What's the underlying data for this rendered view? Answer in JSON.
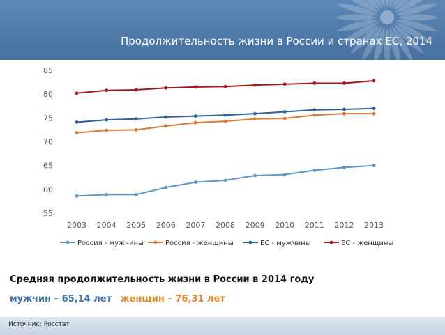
{
  "title": "Продолжительность жизни в России и странах ЕС, 2014",
  "summary": {
    "heading": "Средняя продолжительность жизни в России в 2014 году",
    "men": "мужчин – 65,14 лет",
    "women": "женщин – 76,31 лет"
  },
  "source": "Источник: Росстат",
  "colors": {
    "header": "#4f7aab",
    "russia_men": "#5f95c6",
    "russia_women": "#d9793a",
    "eu_men": "#2e5f96",
    "eu_women": "#a01919"
  },
  "chart_data": {
    "type": "line",
    "title": "",
    "xlabel": "",
    "ylabel": "",
    "categories": [
      "2003",
      "2004",
      "2005",
      "2006",
      "2007",
      "2008",
      "2009",
      "2010",
      "2011",
      "2012",
      "2013"
    ],
    "ylim": [
      55,
      85
    ],
    "yticks": [
      55,
      60,
      65,
      70,
      75,
      80,
      85
    ],
    "grid": false,
    "legend": "bottom",
    "series": [
      {
        "name": "Россия - мужчины",
        "color": "#5f95c6",
        "values": [
          58.6,
          58.9,
          58.9,
          60.4,
          61.5,
          61.9,
          62.9,
          63.1,
          64.0,
          64.6,
          65.0
        ]
      },
      {
        "name": "Россия - женщины",
        "color": "#d9793a",
        "values": [
          71.9,
          72.4,
          72.5,
          73.3,
          74.0,
          74.3,
          74.8,
          74.9,
          75.6,
          75.9,
          75.9
        ]
      },
      {
        "name": "ЕС - мужчины",
        "color": "#2e5f96",
        "values": [
          74.1,
          74.6,
          74.8,
          75.2,
          75.4,
          75.6,
          75.9,
          76.3,
          76.7,
          76.8,
          77.0
        ]
      },
      {
        "name": "ЕС - женщины",
        "color": "#a01919",
        "values": [
          80.2,
          80.8,
          80.9,
          81.3,
          81.5,
          81.6,
          81.9,
          82.1,
          82.3,
          82.3,
          82.8
        ]
      }
    ]
  }
}
